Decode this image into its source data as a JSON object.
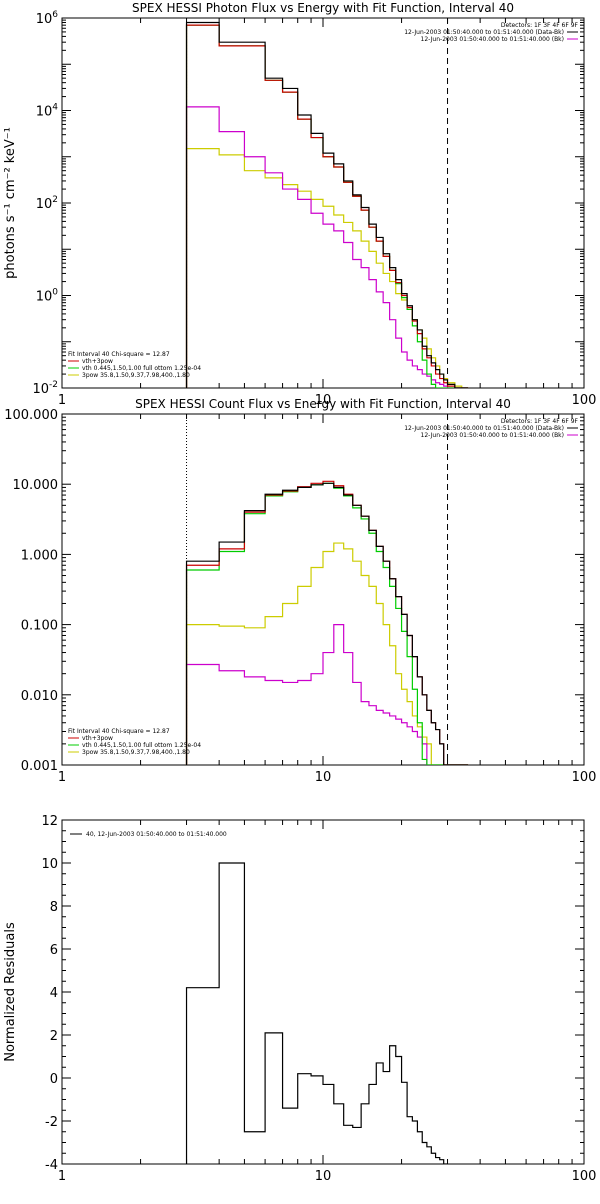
{
  "chart_data": [
    {
      "type": "line",
      "title": "SPEX HESSI Photon Flux vs Energy with Fit Function, Interval 40",
      "ylabel": "photons s⁻¹ cm⁻² keV⁻¹",
      "xlabel": "",
      "xscale": "log",
      "yscale": "log",
      "xlim": [
        1,
        100
      ],
      "ylim": [
        0.01,
        1000000
      ],
      "x_ticks": [
        "1",
        "10",
        "100"
      ],
      "y_ticks": [
        {
          "value": 1000000,
          "base": "10",
          "exp": "6"
        },
        {
          "value": 10000,
          "base": "10",
          "exp": "4"
        },
        {
          "value": 100,
          "base": "10",
          "exp": "2"
        },
        {
          "value": 1,
          "base": "10",
          "exp": "0"
        },
        {
          "value": 0.01,
          "base": "10",
          "exp": "-2"
        }
      ],
      "legend_top_right": [
        {
          "text": "Detectors: 1F 3F 4F 6F 9F",
          "color": ""
        },
        {
          "text": "12-Jun-2003 01:50:40.000 to 01:51:40.000 (Data-Bk)",
          "color": "#000000"
        },
        {
          "text": "12-Jun-2003 01:50:40.000 to 01:51:40.000 (Bk)",
          "color": "#cc00cc"
        }
      ],
      "legend_bottom_left": [
        {
          "text": "Fit Interval 40   Chi-square = 12.87",
          "color": ""
        },
        {
          "text": "vth+3pow",
          "color": "#cc0000"
        },
        {
          "text": "vth 0.445,1.50,1.00  full ottom 1.25e-04",
          "color": "#00cc00"
        },
        {
          "text": "3pow 35.8,1.50,9.37,7.98,400.,1.80",
          "color": "#cccc00"
        }
      ],
      "energy_edges": [
        3,
        4,
        5,
        6,
        7,
        8,
        9,
        10,
        11,
        12,
        13,
        14,
        15,
        16,
        17,
        18,
        19,
        20,
        21,
        22,
        23,
        24,
        25,
        26,
        27,
        28,
        29,
        30,
        32,
        34,
        36
      ],
      "series": [
        {
          "name": "Data-Bk",
          "color": "#000000",
          "values": [
            800000,
            300000,
            300000,
            50000,
            30000,
            8000,
            3200,
            1200,
            700,
            300,
            150,
            80,
            35,
            18,
            8,
            4,
            2.2,
            1.1,
            0.6,
            0.3,
            0.18,
            0.08,
            0.05,
            0.035,
            0.025,
            0.02,
            0.015,
            0.012,
            0.01,
            0.01
          ]
        },
        {
          "name": "Bk",
          "color": "#cc00cc",
          "values": [
            12000,
            3500,
            1000,
            450,
            200,
            120,
            60,
            35,
            25,
            14,
            6,
            4,
            2.2,
            1.2,
            0.7,
            0.3,
            0.12,
            0.06,
            0.04,
            0.03,
            0.025,
            0.02,
            0.018,
            0.015,
            0.013,
            0.012,
            0.011,
            0.01,
            0.01,
            0.01
          ]
        },
        {
          "name": "vth+3pow",
          "color": "#cc0000",
          "values": [
            700000,
            250000,
            250000,
            45000,
            25000,
            6500,
            2600,
            1000,
            600,
            280,
            140,
            70,
            30,
            15,
            7,
            3.5,
            1.9,
            1.0,
            0.55,
            0.28,
            0.15,
            0.07,
            0.045,
            0.03,
            0.02,
            0.016,
            0.013,
            0.011,
            0.01,
            0.01
          ]
        },
        {
          "name": "vth",
          "color": "#00cc00",
          "values": [
            700000,
            250000,
            250000,
            45000,
            25000,
            6500,
            2600,
            1000,
            600,
            280,
            140,
            70,
            30,
            15,
            7,
            3.5,
            1.8,
            0.9,
            0.5,
            0.22,
            0.1,
            0.04,
            0.02,
            0.012,
            0.01,
            0.01,
            0.01,
            0.01,
            0.01,
            0.01
          ]
        },
        {
          "name": "3pow",
          "color": "#cccc00",
          "values": [
            1500,
            1100,
            500,
            350,
            250,
            180,
            120,
            85,
            55,
            38,
            25,
            15,
            9,
            5,
            3,
            2,
            1.1,
            0.8,
            0.5,
            0.3,
            0.18,
            0.12,
            0.07,
            0.045,
            0.03,
            0.02,
            0.016,
            0.013,
            0.011,
            0.01
          ]
        }
      ]
    },
    {
      "type": "line",
      "title": "SPEX HESSI Count Flux vs Energy with Fit Function, Interval 40",
      "xlabel": "",
      "ylabel": "",
      "xscale": "log",
      "yscale": "log",
      "xlim": [
        1,
        100
      ],
      "ylim": [
        0.001,
        100
      ],
      "x_ticks": [
        "1",
        "10",
        "100"
      ],
      "y_ticks": [
        {
          "value": 100,
          "label": "100.000"
        },
        {
          "value": 10,
          "label": "10.000"
        },
        {
          "value": 1,
          "label": "1.000"
        },
        {
          "value": 0.1,
          "label": "0.100"
        },
        {
          "value": 0.01,
          "label": "0.010"
        },
        {
          "value": 0.001,
          "label": "0.001"
        }
      ],
      "legend_top_right": [
        {
          "text": "Detectors: 1F 3F 4F 6F 9F",
          "color": ""
        },
        {
          "text": "12-Jun-2003 01:50:40.000 to 01:51:40.000 (Data-Bk)",
          "color": "#000000"
        },
        {
          "text": "12-Jun-2003 01:50:40.000 to 01:51:40.000 (Bk)",
          "color": "#cc00cc"
        }
      ],
      "legend_bottom_left": [
        {
          "text": "Fit Interval 40   Chi-square = 12.87",
          "color": ""
        },
        {
          "text": "vth+3pow",
          "color": "#cc0000"
        },
        {
          "text": "vth 0.445,1.50,1.00  full ottom 1.25e-04",
          "color": "#00cc00"
        },
        {
          "text": "3pow 35.8,1.50,9.37,7.98,400.,1.80",
          "color": "#cccc00"
        }
      ],
      "energy_edges": [
        3,
        4,
        5,
        6,
        7,
        8,
        9,
        10,
        11,
        12,
        13,
        14,
        15,
        16,
        17,
        18,
        19,
        20,
        21,
        22,
        23,
        24,
        25,
        26,
        27,
        28,
        29,
        30,
        32,
        34,
        36
      ],
      "series": [
        {
          "name": "Data-Bk",
          "color": "#000000",
          "values": [
            0.8,
            1.5,
            4.2,
            7.2,
            8.2,
            9.0,
            9.8,
            10.3,
            9.0,
            7.0,
            5.0,
            3.5,
            2.2,
            1.3,
            0.8,
            0.45,
            0.25,
            0.14,
            0.07,
            0.035,
            0.018,
            0.01,
            0.006,
            0.004,
            0.0032,
            0.002,
            0.001,
            0.001,
            0.001,
            0.001
          ]
        },
        {
          "name": "Bk",
          "color": "#cc00cc",
          "values": [
            0.027,
            0.022,
            0.018,
            0.016,
            0.015,
            0.016,
            0.02,
            0.04,
            0.1,
            0.04,
            0.015,
            0.008,
            0.007,
            0.006,
            0.0055,
            0.005,
            0.0045,
            0.004,
            0.0035,
            0.003,
            0.0025,
            0.002,
            0.001,
            0.001,
            0.001,
            0.001,
            0.001,
            0.001,
            0.001,
            0.001
          ]
        },
        {
          "name": "vth+3pow",
          "color": "#cc0000",
          "values": [
            0.7,
            1.2,
            4.0,
            7.0,
            8.0,
            9.2,
            10.3,
            11.0,
            9.5,
            7.2,
            5.0,
            3.5,
            2.2,
            1.3,
            0.8,
            0.45,
            0.25,
            0.14,
            0.07,
            0.035,
            0.018,
            0.01,
            0.006,
            0.004,
            0.0032,
            0.002,
            0.001,
            0.001,
            0.001,
            0.001
          ]
        },
        {
          "name": "vth",
          "color": "#00cc00",
          "values": [
            0.6,
            1.1,
            3.8,
            6.8,
            7.8,
            9.0,
            9.8,
            10.3,
            8.8,
            6.8,
            4.6,
            3.2,
            2.0,
            1.1,
            0.65,
            0.35,
            0.17,
            0.08,
            0.035,
            0.012,
            0.004,
            0.0012,
            0.001,
            0.001,
            0.001,
            0.001,
            0.001,
            0.001,
            0.001,
            0.001
          ]
        },
        {
          "name": "3pow",
          "color": "#cccc00",
          "values": [
            0.1,
            0.095,
            0.09,
            0.13,
            0.2,
            0.35,
            0.65,
            1.1,
            1.45,
            1.2,
            0.8,
            0.5,
            0.35,
            0.2,
            0.1,
            0.05,
            0.02,
            0.012,
            0.008,
            0.005,
            0.0035,
            0.0025,
            0.002,
            0.001,
            0.001,
            0.001,
            0.001,
            0.001,
            0.001,
            0.001
          ]
        }
      ]
    },
    {
      "type": "line",
      "title": "",
      "xlabel": "",
      "ylabel": "Normalized Residuals",
      "xscale": "log",
      "yscale": "linear",
      "xlim": [
        1,
        100
      ],
      "ylim": [
        -4,
        12
      ],
      "x_ticks": [
        "1",
        "10",
        "100"
      ],
      "y_ticks": [
        "12",
        "10",
        "8",
        "6",
        "4",
        "2",
        "0",
        "-2",
        "-4"
      ],
      "legend": [
        {
          "text": "40, 12-Jun-2003 01:50:40.000 to 01:51:40.000",
          "color": "#000000"
        }
      ],
      "energy_edges": [
        3,
        4,
        5,
        6,
        7,
        8,
        9,
        10,
        11,
        12,
        13,
        14,
        15,
        16,
        17,
        18,
        19,
        20,
        21,
        22,
        23,
        24,
        25,
        26,
        27,
        28,
        29,
        30
      ],
      "series": [
        {
          "name": "",
          "color": "#000000",
          "values": [
            4.2,
            10.0,
            -2.5,
            2.1,
            -1.4,
            0.2,
            0.1,
            -0.3,
            -1.2,
            -2.2,
            -2.3,
            -1.2,
            -0.3,
            0.7,
            0.3,
            1.5,
            1.0,
            -0.2,
            -1.8,
            -2.0,
            -2.5,
            -3.0,
            -3.2,
            -3.5,
            -3.7,
            -3.8,
            -4.0
          ]
        }
      ]
    }
  ]
}
